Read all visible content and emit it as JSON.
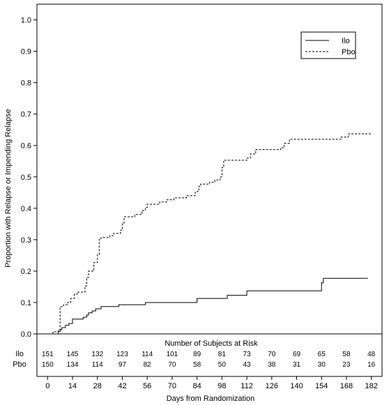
{
  "chart_data": {
    "type": "line",
    "subtype": "kaplan-meier step",
    "title": "",
    "xlabel": "Days from Randomization",
    "ylabel": "Proportion with Relapse or Impending Relapse",
    "xlim": [
      -6,
      188
    ],
    "ylim": [
      0,
      1.05
    ],
    "x_ticks": [
      0,
      14,
      28,
      42,
      56,
      70,
      84,
      98,
      112,
      126,
      140,
      154,
      168,
      182
    ],
    "y_ticks": [
      "0.0",
      "0.1",
      "0.2",
      "0.3",
      "0.4",
      "0.5",
      "0.6",
      "0.7",
      "0.8",
      "0.9",
      "1.0"
    ],
    "grid": false,
    "legend": {
      "placement": "top-right",
      "entries": [
        {
          "name": "Ilo",
          "line_style": "solid"
        },
        {
          "name": "Pbo",
          "line_style": "dashed"
        }
      ]
    },
    "series": [
      {
        "name": "Ilo",
        "line_style": "solid",
        "color": "#000000",
        "points": [
          [
            6,
            0.0
          ],
          [
            6,
            0.007
          ],
          [
            7,
            0.007
          ],
          [
            7,
            0.013
          ],
          [
            8,
            0.013
          ],
          [
            8,
            0.02
          ],
          [
            10,
            0.02
          ],
          [
            10,
            0.027
          ],
          [
            12,
            0.027
          ],
          [
            12,
            0.033
          ],
          [
            14,
            0.033
          ],
          [
            14,
            0.047
          ],
          [
            20,
            0.047
          ],
          [
            20,
            0.053
          ],
          [
            22,
            0.053
          ],
          [
            22,
            0.06
          ],
          [
            23,
            0.06
          ],
          [
            23,
            0.067
          ],
          [
            25,
            0.067
          ],
          [
            25,
            0.073
          ],
          [
            27,
            0.073
          ],
          [
            27,
            0.08
          ],
          [
            30,
            0.08
          ],
          [
            30,
            0.087
          ],
          [
            40,
            0.087
          ],
          [
            40,
            0.093
          ],
          [
            55,
            0.093
          ],
          [
            55,
            0.1
          ],
          [
            84,
            0.1
          ],
          [
            84,
            0.113
          ],
          [
            101,
            0.113
          ],
          [
            101,
            0.123
          ],
          [
            112,
            0.123
          ],
          [
            112,
            0.137
          ],
          [
            154,
            0.137
          ],
          [
            154,
            0.163
          ],
          [
            155,
            0.163
          ],
          [
            155,
            0.177
          ],
          [
            180,
            0.177
          ]
        ]
      },
      {
        "name": "Pbo",
        "line_style": "dashed",
        "color": "#000000",
        "points": [
          [
            3,
            0.0
          ],
          [
            3,
            0.007
          ],
          [
            6,
            0.007
          ],
          [
            6,
            0.013
          ],
          [
            7,
            0.013
          ],
          [
            7,
            0.087
          ],
          [
            9,
            0.087
          ],
          [
            9,
            0.093
          ],
          [
            11,
            0.093
          ],
          [
            11,
            0.1
          ],
          [
            13,
            0.1
          ],
          [
            13,
            0.113
          ],
          [
            15,
            0.113
          ],
          [
            15,
            0.127
          ],
          [
            17,
            0.127
          ],
          [
            17,
            0.133
          ],
          [
            21,
            0.133
          ],
          [
            21,
            0.153
          ],
          [
            22,
            0.153
          ],
          [
            22,
            0.18
          ],
          [
            23,
            0.18
          ],
          [
            23,
            0.2
          ],
          [
            26,
            0.2
          ],
          [
            26,
            0.227
          ],
          [
            28,
            0.227
          ],
          [
            28,
            0.253
          ],
          [
            29,
            0.253
          ],
          [
            29,
            0.3
          ],
          [
            30,
            0.3
          ],
          [
            30,
            0.307
          ],
          [
            35,
            0.307
          ],
          [
            35,
            0.313
          ],
          [
            37,
            0.313
          ],
          [
            37,
            0.32
          ],
          [
            41,
            0.32
          ],
          [
            41,
            0.33
          ],
          [
            42,
            0.33
          ],
          [
            42,
            0.353
          ],
          [
            43,
            0.353
          ],
          [
            43,
            0.373
          ],
          [
            49,
            0.373
          ],
          [
            49,
            0.38
          ],
          [
            53,
            0.38
          ],
          [
            53,
            0.393
          ],
          [
            55,
            0.393
          ],
          [
            55,
            0.403
          ],
          [
            56,
            0.403
          ],
          [
            56,
            0.413
          ],
          [
            63,
            0.413
          ],
          [
            63,
            0.42
          ],
          [
            67,
            0.42
          ],
          [
            67,
            0.427
          ],
          [
            71,
            0.427
          ],
          [
            71,
            0.433
          ],
          [
            78,
            0.433
          ],
          [
            78,
            0.44
          ],
          [
            83,
            0.44
          ],
          [
            83,
            0.453
          ],
          [
            85,
            0.453
          ],
          [
            85,
            0.47
          ],
          [
            86,
            0.47
          ],
          [
            86,
            0.477
          ],
          [
            91,
            0.477
          ],
          [
            91,
            0.483
          ],
          [
            94,
            0.483
          ],
          [
            94,
            0.49
          ],
          [
            97,
            0.49
          ],
          [
            97,
            0.5
          ],
          [
            98,
            0.5
          ],
          [
            98,
            0.53
          ],
          [
            99,
            0.53
          ],
          [
            99,
            0.553
          ],
          [
            112,
            0.553
          ],
          [
            112,
            0.56
          ],
          [
            114,
            0.56
          ],
          [
            114,
            0.573
          ],
          [
            117,
            0.573
          ],
          [
            117,
            0.587
          ],
          [
            131,
            0.587
          ],
          [
            131,
            0.593
          ],
          [
            133,
            0.593
          ],
          [
            133,
            0.607
          ],
          [
            136,
            0.607
          ],
          [
            136,
            0.62
          ],
          [
            165,
            0.62
          ],
          [
            165,
            0.627
          ],
          [
            169,
            0.627
          ],
          [
            169,
            0.637
          ],
          [
            182,
            0.637
          ]
        ]
      }
    ],
    "risk_table": {
      "title": "Number of Subjects at Risk",
      "rows": [
        {
          "label": "Ilo",
          "values": [
            "151",
            "145",
            "132",
            "123",
            "114",
            "101",
            "89",
            "81",
            "73",
            "70",
            "69",
            "65",
            "58",
            "48"
          ]
        },
        {
          "label": "Pbo",
          "values": [
            "150",
            "134",
            "114",
            "97",
            "82",
            "70",
            "58",
            "50",
            "43",
            "38",
            "31",
            "30",
            "23",
            "16"
          ]
        }
      ]
    }
  }
}
